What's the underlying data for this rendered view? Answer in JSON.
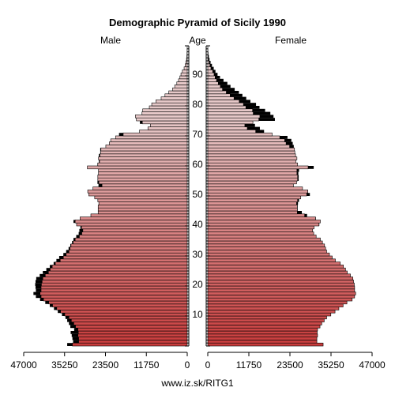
{
  "chart_data": {
    "type": "bar",
    "title": "Demographic Pyramid of Sicily 1990",
    "left_label": "Male",
    "center_label": "Age",
    "right_label": "Female",
    "source": "www.iz.sk/RITG1",
    "x_ticks_left": [
      "47000",
      "35250",
      "23500",
      "11750",
      "0"
    ],
    "x_ticks_right": [
      "0",
      "11750",
      "23500",
      "35250",
      "47000"
    ],
    "x_tick_values": [
      47000,
      35250,
      23500,
      11750,
      0
    ],
    "age_ticks": [
      10,
      20,
      30,
      40,
      50,
      60,
      70,
      80,
      90
    ],
    "xlim": [
      0,
      47000
    ],
    "age_range": [
      0,
      100
    ],
    "colors": {
      "male_young": "#c83c3c",
      "male_old": "#e6c8c8",
      "female_young": "#c83c3c",
      "female_old": "#e6c8c8",
      "excess": "#000000",
      "outline": "#000000"
    },
    "ages": [
      0,
      1,
      2,
      3,
      4,
      5,
      6,
      7,
      8,
      9,
      10,
      11,
      12,
      13,
      14,
      15,
      16,
      17,
      18,
      19,
      20,
      21,
      22,
      23,
      24,
      25,
      26,
      27,
      28,
      29,
      30,
      31,
      32,
      33,
      34,
      35,
      36,
      37,
      38,
      39,
      40,
      41,
      42,
      43,
      44,
      45,
      46,
      47,
      48,
      49,
      50,
      51,
      52,
      53,
      54,
      55,
      56,
      57,
      58,
      59,
      60,
      61,
      62,
      63,
      64,
      65,
      66,
      67,
      68,
      69,
      70,
      71,
      72,
      73,
      74,
      75,
      76,
      77,
      78,
      79,
      80,
      81,
      82,
      83,
      84,
      85,
      86,
      87,
      88,
      89,
      90,
      91,
      92,
      93,
      94,
      95,
      96,
      97,
      98,
      99
    ],
    "series": [
      {
        "name": "Male",
        "values": [
          34500,
          32800,
          33000,
          33200,
          33500,
          32500,
          33600,
          34000,
          34500,
          35000,
          36000,
          37200,
          38300,
          39500,
          40800,
          42300,
          43500,
          44200,
          43500,
          43600,
          43700,
          43600,
          43400,
          42400,
          41500,
          40500,
          39500,
          38400,
          37600,
          36800,
          35600,
          34800,
          34100,
          33600,
          33100,
          32700,
          31900,
          31200,
          31000,
          30700,
          31800,
          32700,
          30800,
          27700,
          25600,
          25600,
          25600,
          25400,
          25700,
          26600,
          28300,
          28600,
          27100,
          25500,
          25800,
          25700,
          25700,
          25500,
          25500,
          28700,
          25800,
          25400,
          25500,
          25400,
          25000,
          25000,
          23400,
          22400,
          22000,
          20600,
          19600,
          13700,
          11300,
          10600,
          13600,
          14600,
          14900,
          13000,
          12800,
          10900,
          10200,
          9000,
          7500,
          6400,
          5300,
          4200,
          3600,
          3000,
          2500,
          2100,
          1800,
          1400,
          900,
          600,
          400,
          200,
          100,
          60,
          30,
          10
        ]
      },
      {
        "name": "Female",
        "values": [
          33000,
          31200,
          31200,
          31400,
          31300,
          31400,
          32100,
          32600,
          33300,
          34000,
          35200,
          36400,
          37500,
          38700,
          39800,
          41300,
          42000,
          42300,
          42000,
          42000,
          41900,
          41700,
          41500,
          40800,
          39900,
          39400,
          38800,
          37900,
          36500,
          35600,
          34800,
          34000,
          33700,
          33400,
          32800,
          32200,
          31000,
          30300,
          30000,
          30400,
          31900,
          32200,
          30900,
          28400,
          26900,
          25700,
          25700,
          25800,
          26100,
          26600,
          29200,
          28700,
          27100,
          24500,
          25400,
          26000,
          26000,
          25900,
          26100,
          30300,
          25700,
          25200,
          25500,
          25100,
          24900,
          24800,
          24600,
          24300,
          23900,
          22800,
          18400,
          16100,
          14900,
          13500,
          12900,
          19200,
          18800,
          17900,
          16400,
          14800,
          13800,
          12200,
          11000,
          9900,
          8900,
          7700,
          6500,
          5600,
          4500,
          3500,
          2800,
          2200,
          1700,
          1200,
          800,
          500,
          300,
          150,
          70,
          30
        ]
      }
    ]
  }
}
